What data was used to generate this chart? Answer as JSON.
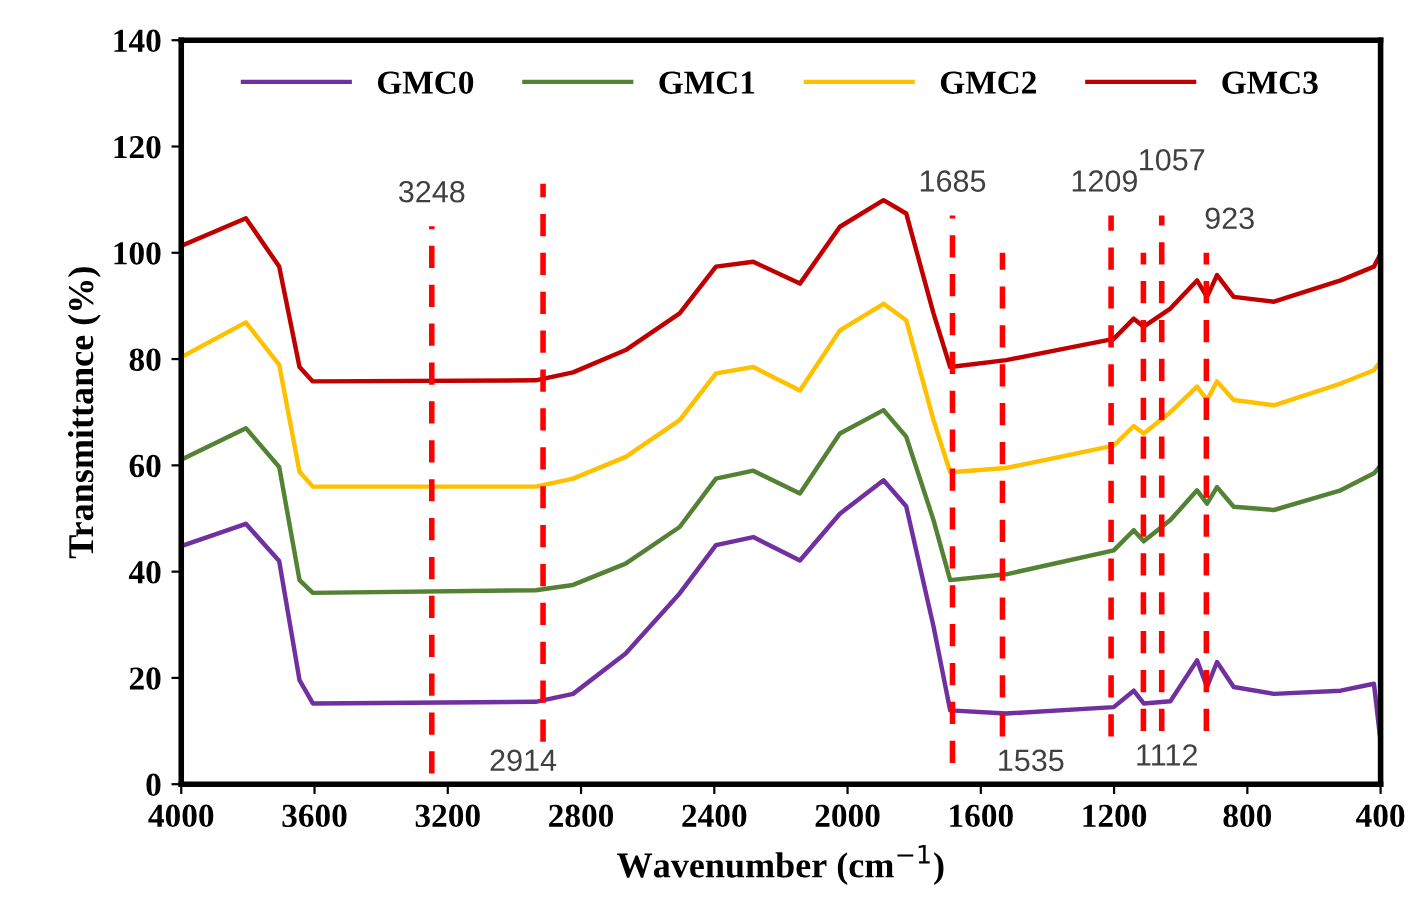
{
  "chart_data": {
    "type": "line",
    "xlabel": "Wavenumber (cm$^{−1}$)",
    "ylabel": "Transmittance (%)",
    "xlim": [
      4000,
      400
    ],
    "xticks": [
      4000,
      3600,
      3200,
      2800,
      2400,
      2000,
      1600,
      1200,
      800,
      400
    ],
    "ylim": [
      0,
      140
    ],
    "yticks": [
      0,
      20,
      40,
      60,
      80,
      100,
      120,
      140
    ],
    "grid": false,
    "legend": "top",
    "marker": "none",
    "line_style": "solid",
    "x": [
      3996,
      3806,
      3706,
      3645,
      3605,
      2936,
      2824,
      2666,
      2504,
      2395,
      2283,
      2143,
      2023,
      1892,
      1824,
      1742,
      1692,
      1524,
      1201,
      1141,
      1111,
      1031,
      951,
      921,
      891,
      841,
      720,
      520,
      420,
      400
    ],
    "series": [
      {
        "name": "GMC0",
        "color": "#7030a0",
        "values": [
          44.9,
          49,
          42,
          19.6,
          15.2,
          15.5,
          17,
          24.6,
          35.9,
          45,
          46.5,
          42.1,
          50.9,
          57.2,
          52.3,
          29.7,
          13.9,
          13.3,
          14.5,
          17.6,
          15.2,
          15.6,
          23.3,
          18.3,
          23,
          18.3,
          17,
          17.6,
          18.9,
          8
        ]
      },
      {
        "name": "GMC1",
        "color": "#548235",
        "values": [
          61.2,
          67,
          59.7,
          38.4,
          36,
          36.5,
          37.5,
          41.5,
          48.4,
          57.5,
          59,
          54.7,
          66,
          70.4,
          65.4,
          49.7,
          38.4,
          39.5,
          44,
          47.8,
          45.7,
          49.7,
          55.3,
          52.8,
          55.9,
          52.2,
          51.6,
          55.3,
          58.5,
          60
        ]
      },
      {
        "name": "GMC2",
        "color": "#ffc000",
        "values": [
          80.5,
          86.9,
          78.9,
          58.8,
          56,
          56,
          57.5,
          61.6,
          68.5,
          77.3,
          78.5,
          74.1,
          85.4,
          90.4,
          87.3,
          68.5,
          58.7,
          59.5,
          63.7,
          67.4,
          66,
          70,
          74.8,
          72.3,
          75.8,
          72.3,
          71.3,
          75.4,
          77.9,
          79.5
        ]
      },
      {
        "name": "GMC3",
        "color": "#c00000",
        "values": [
          101.4,
          106.5,
          97.4,
          78.5,
          75.8,
          76,
          77.5,
          81.7,
          88.6,
          97.4,
          98.3,
          94.2,
          104.9,
          109.9,
          107.4,
          88.6,
          78.5,
          79.8,
          83.8,
          87.6,
          86.1,
          89.5,
          94.8,
          91.7,
          95.8,
          91.7,
          90.8,
          94.8,
          97.4,
          99.8
        ]
      }
    ],
    "ref_lines": [
      {
        "axis": "x",
        "value": 3248,
        "label": "3248",
        "color": "#ff0000",
        "line_style": "dashed"
      },
      {
        "axis": "x",
        "value": 2914,
        "label": "2914",
        "color": "#ff0000",
        "line_style": "dashed"
      },
      {
        "axis": "x",
        "value": 1685,
        "label": "1685",
        "color": "#ff0000",
        "line_style": "dashed"
      },
      {
        "axis": "x",
        "value": 1535,
        "label": "1535",
        "color": "#ff0000",
        "line_style": "dashed"
      },
      {
        "axis": "x",
        "value": 1209,
        "label": "1209",
        "color": "#ff0000",
        "line_style": "dashed"
      },
      {
        "axis": "x",
        "value": 1112,
        "label": "1112",
        "color": "#ff0000",
        "line_style": "dashed"
      },
      {
        "axis": "x",
        "value": 1057,
        "label": "1057",
        "color": "#ff0000",
        "line_style": "dashed"
      },
      {
        "axis": "x",
        "value": 923,
        "label": "923",
        "color": "#ff0000",
        "line_style": "dashed"
      }
    ]
  }
}
